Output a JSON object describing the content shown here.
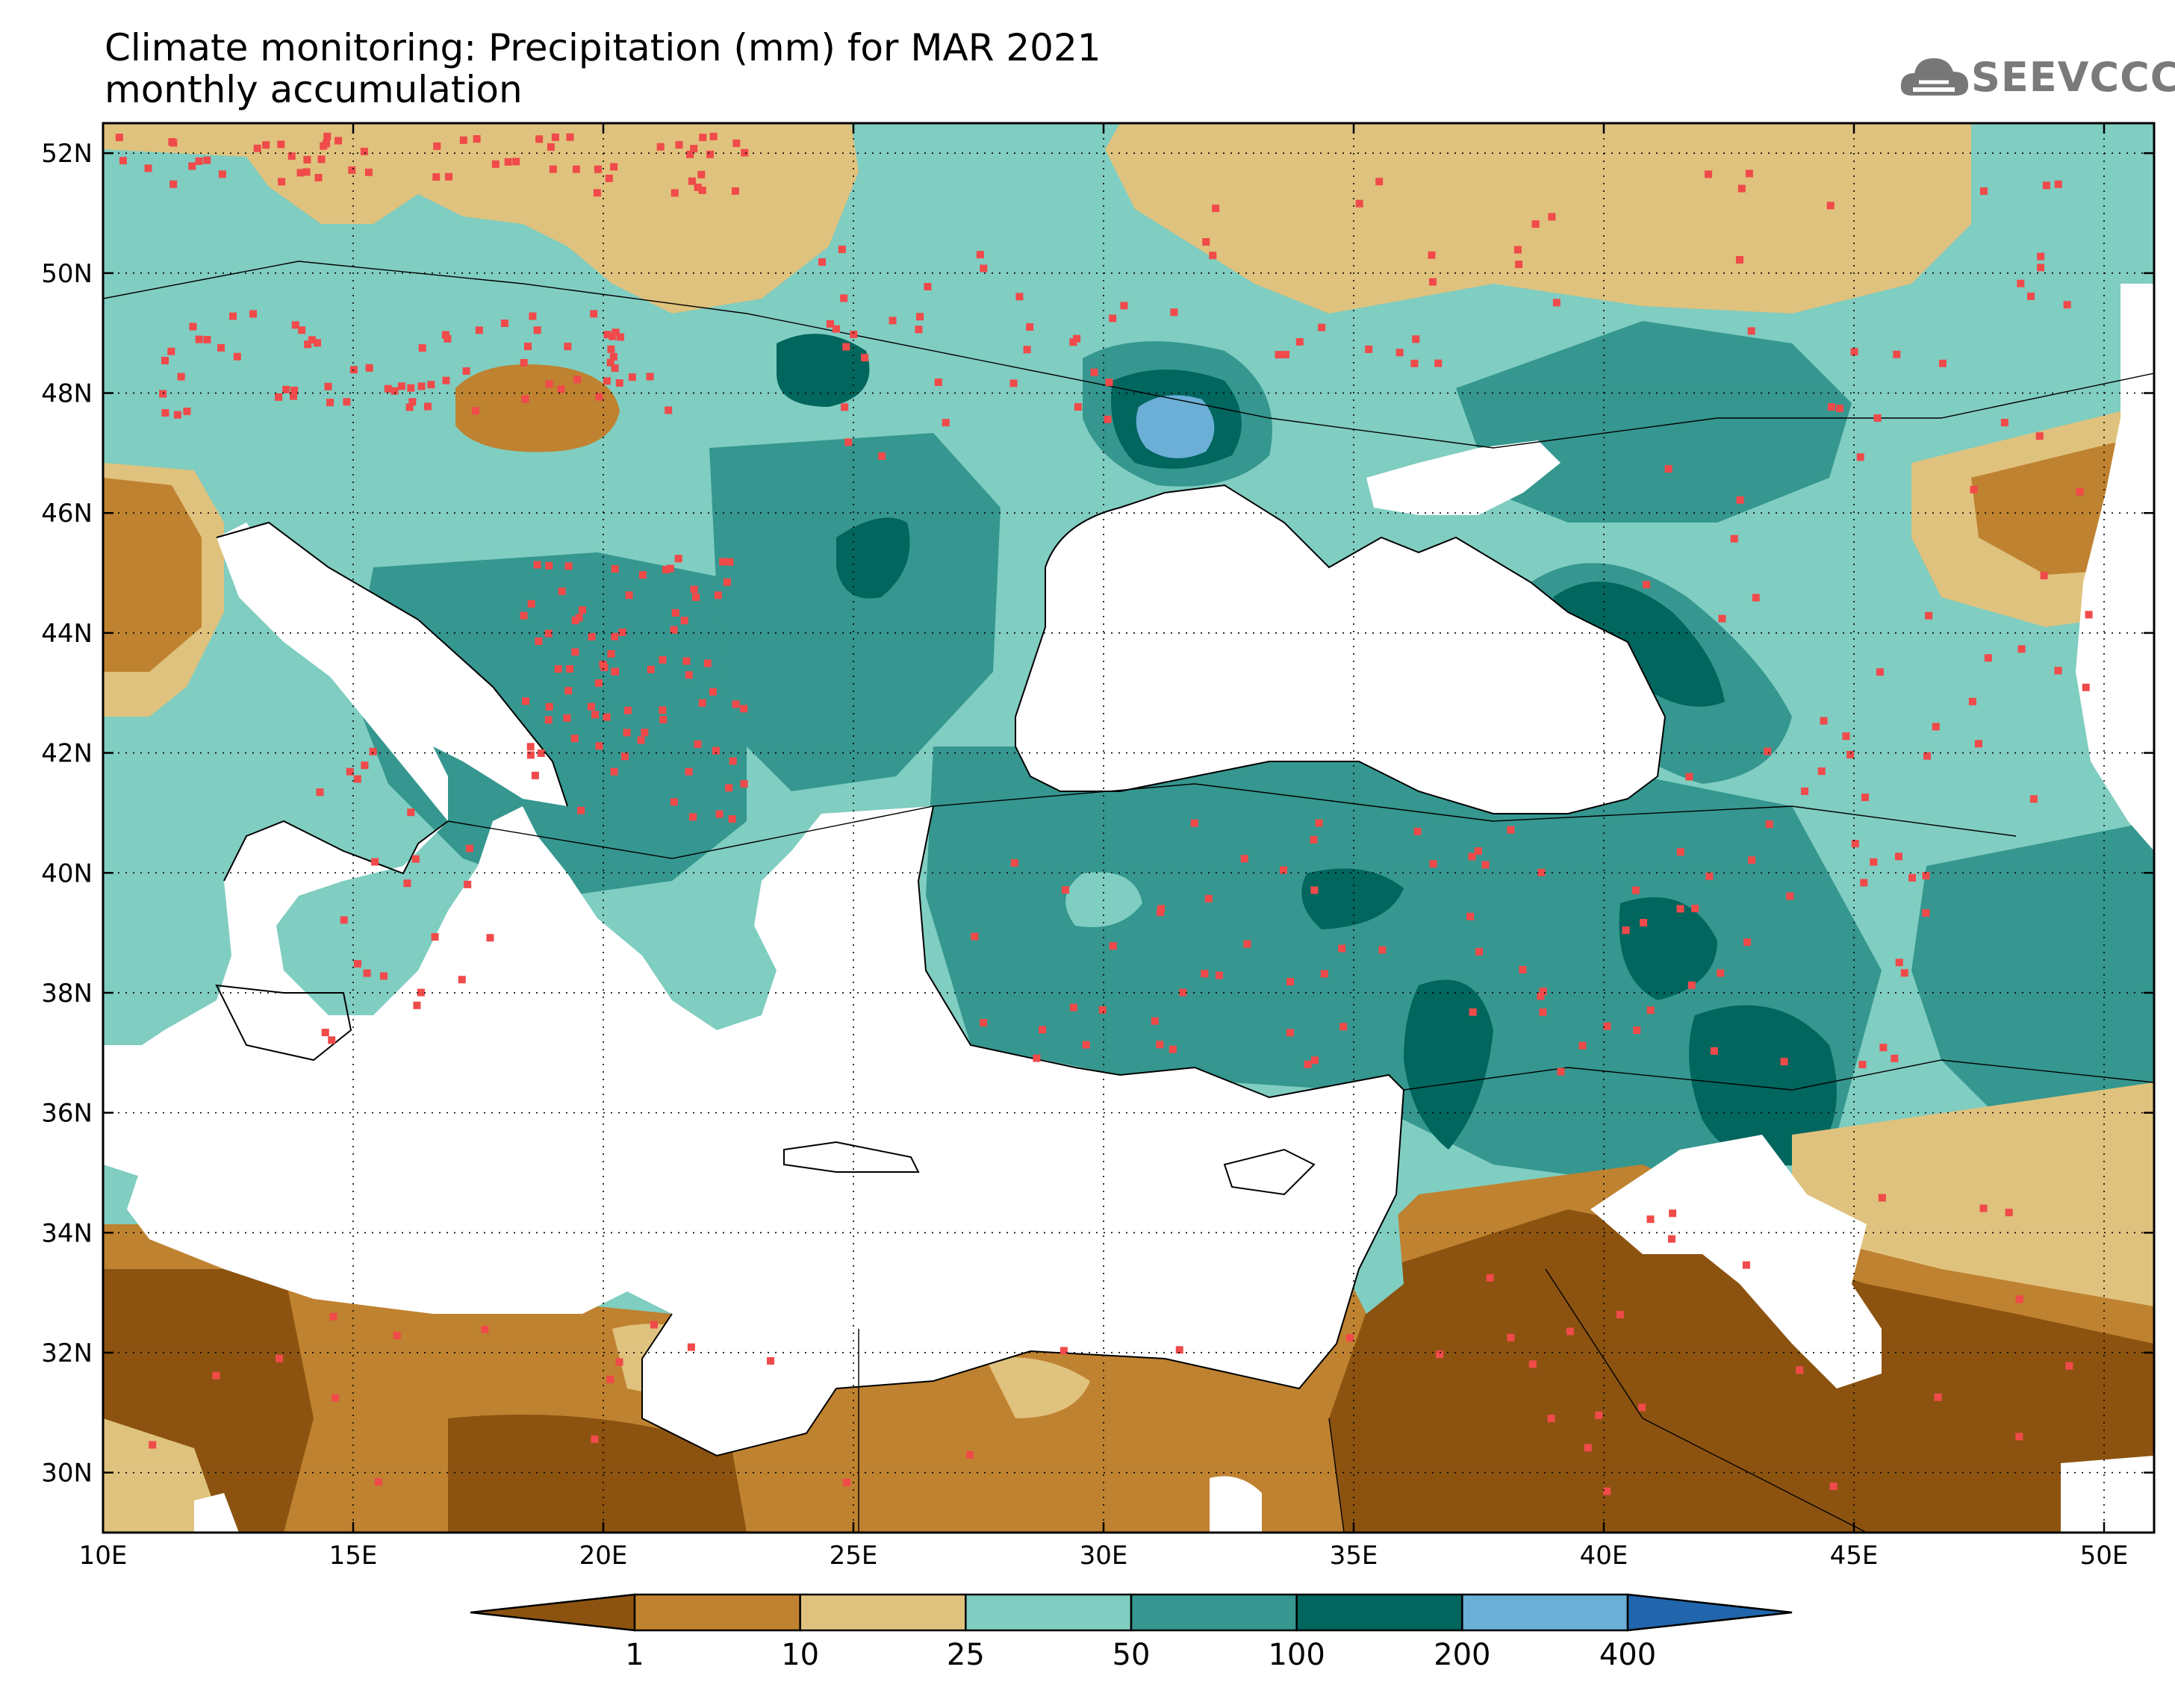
{
  "title": {
    "line1": "Climate monitoring: Precipitation (mm) for MAR 2021",
    "line2": "monthly accumulation"
  },
  "logo": {
    "text": "SEEVCCC",
    "icon": "cloud-logo-icon",
    "color": "#777777"
  },
  "map": {
    "lon_ticks": [
      "10E",
      "15E",
      "20E",
      "25E",
      "30E",
      "35E",
      "40E",
      "45E",
      "50E"
    ],
    "lat_ticks": [
      "52N",
      "50N",
      "48N",
      "46N",
      "44N",
      "42N",
      "40N",
      "38N",
      "36N",
      "34N",
      "32N",
      "30N"
    ],
    "land_colors_note_free": true
  },
  "legend": {
    "colors": [
      "#8c5310",
      "#bf8230",
      "#dfc27d",
      "#80cdc1",
      "#35978f",
      "#01665e",
      "#6baed6",
      "#2166ac"
    ],
    "labels": [
      "1",
      "10",
      "25",
      "50",
      "100",
      "200",
      "400"
    ]
  },
  "palette": {
    "dark_brown": "#8c5310",
    "brown": "#bf8230",
    "tan": "#dfc27d",
    "light_teal": "#80cdc1",
    "teal": "#35978f",
    "dark_teal": "#01665e",
    "light_blue": "#6baed6",
    "station_marker": "#f04a4a"
  }
}
